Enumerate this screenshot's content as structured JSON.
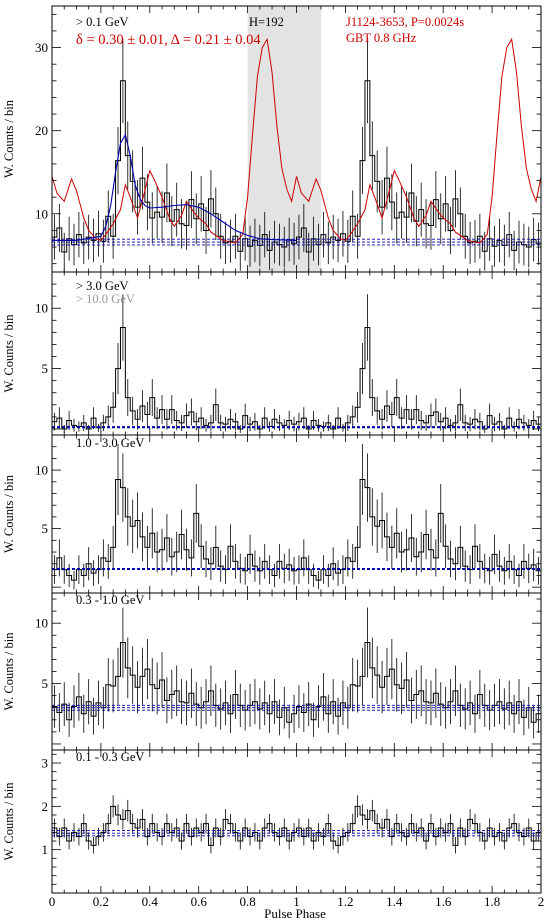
{
  "figure": {
    "xlabel": "Pulse Phase",
    "ylabel": "W. Counts / bin",
    "xticks": [
      "0",
      "0.2",
      "0.4",
      "0.6",
      "0.8",
      "1",
      "1.2",
      "1.4",
      "1.6",
      "1.8",
      "2"
    ],
    "colors": {
      "hist": "#000000",
      "radio": "#cc0000",
      "fit": "#0000aa",
      "band": "#e3e3e3",
      "grey_text": "#9a9a9a"
    }
  },
  "chart_data": [
    {
      "type": "histogram",
      "energy_label": "> 0.1 GeV",
      "params_label": "δ = 0.30 ± 0.01, Δ = 0.21 ± 0.04",
      "h_label": "H=192",
      "pulsar_label": "J1124-3653, P=0.0024s",
      "radio_label": "GBT 0.8 GHz",
      "offpulse_region": [
        0.8,
        1.1
      ],
      "ylim": [
        3,
        35
      ],
      "yticks": [
        10,
        20,
        30
      ],
      "background_level": 6.6,
      "bins_per_cycle": 50,
      "counts": [
        7.2,
        8.3,
        5.4,
        7.0,
        6.3,
        7.5,
        6.5,
        7.2,
        6.8,
        7.6,
        6.7,
        9.7,
        7.3,
        16.4,
        26.0,
        17.0,
        13.9,
        10.8,
        14.3,
        11.4,
        9.5,
        10.2,
        9.6,
        12.5,
        9.1,
        10.5,
        8.8,
        8.6,
        11.7,
        9.4,
        11.2,
        8.0,
        11.8,
        10.0,
        7.3,
        6.5,
        6.7,
        7.3,
        5.5,
        7.0,
        6.1,
        6.8,
        6.2,
        7.5,
        5.6,
        6.6,
        6.3,
        6.0,
        6.9,
        6.4
      ],
      "radio_profile": {
        "x": [
          0,
          0.02,
          0.05,
          0.08,
          0.1,
          0.13,
          0.15,
          0.18,
          0.2,
          0.22,
          0.25,
          0.28,
          0.3,
          0.32,
          0.35,
          0.38,
          0.4,
          0.42,
          0.45,
          0.48,
          0.5,
          0.53,
          0.55,
          0.58,
          0.6,
          0.63,
          0.65,
          0.68,
          0.7,
          0.73,
          0.75,
          0.78,
          0.8,
          0.82,
          0.84,
          0.86,
          0.88,
          0.9,
          0.92,
          0.94,
          0.96,
          0.98,
          1.0
        ],
        "y": [
          14.5,
          12.5,
          11.5,
          14.2,
          12.8,
          9.5,
          8.0,
          7.0,
          6.8,
          7.5,
          8.8,
          10.5,
          13.5,
          12.0,
          9.5,
          12.8,
          15.2,
          14.0,
          12.0,
          9.5,
          8.5,
          9.8,
          11.5,
          10.2,
          9.5,
          8.8,
          7.8,
          7.2,
          6.8,
          6.6,
          6.5,
          7.5,
          12.0,
          19.5,
          26.5,
          30.0,
          31.0,
          27.0,
          20.5,
          15.5,
          13.0,
          11.5,
          14.5
        ]
      },
      "fit_profile": {
        "x": [
          0,
          0.1,
          0.2,
          0.22,
          0.24,
          0.26,
          0.28,
          0.3,
          0.32,
          0.34,
          0.36,
          0.38,
          0.4,
          0.45,
          0.5,
          0.55,
          0.6,
          0.65,
          0.7,
          0.75,
          0.8,
          0.85,
          0.9,
          1.0
        ],
        "y": [
          6.8,
          6.8,
          7.3,
          8.5,
          11.0,
          15.0,
          18.5,
          19.5,
          17.0,
          13.5,
          11.8,
          11.0,
          10.7,
          10.8,
          11.0,
          11.1,
          10.8,
          10.0,
          9.0,
          8.0,
          7.4,
          7.0,
          6.9,
          6.8
        ]
      }
    },
    {
      "type": "histogram",
      "energy_label": "> 3.0 GeV",
      "energy_label_2": "> 10.0 GeV",
      "ylim": [
        -0.5,
        13
      ],
      "yticks": [
        5,
        10
      ],
      "background_level": 0.15,
      "bins_per_cycle": 50,
      "counts": [
        0.6,
        0.9,
        0.0,
        0.7,
        0.3,
        0.2,
        0.5,
        0.0,
        0.9,
        0.1,
        0.5,
        1.0,
        1.8,
        5.0,
        8.4,
        2.6,
        1.5,
        0.8,
        1.9,
        1.2,
        2.6,
        0.9,
        1.6,
        0.8,
        1.6,
        0.7,
        0.5,
        1.1,
        1.4,
        0.6,
        0.9,
        0.3,
        0.5,
        2.0,
        0.5,
        0.4,
        0.8,
        0.6,
        0.0,
        1.1,
        0.4,
        0.6,
        0.0,
        0.9,
        0.2,
        0.8,
        0.5,
        0.3,
        0.7,
        0.4
      ]
    },
    {
      "type": "histogram",
      "energy_label": "1.0 - 3.0 GeV",
      "ylim": [
        -0.5,
        13
      ],
      "yticks": [
        5,
        10
      ],
      "background_level": 1.55,
      "bins_per_cycle": 50,
      "counts": [
        1.5,
        2.5,
        1.5,
        1.0,
        0.6,
        1.5,
        1.0,
        2.0,
        1.2,
        1.5,
        2.5,
        2.2,
        3.4,
        9.2,
        8.5,
        6.0,
        5.2,
        5.7,
        4.3,
        3.4,
        4.6,
        3.0,
        3.2,
        4.2,
        2.6,
        3.0,
        4.5,
        3.2,
        2.5,
        6.3,
        3.5,
        2.4,
        2.0,
        3.4,
        1.8,
        1.5,
        3.5,
        2.2,
        1.6,
        1.4,
        2.8,
        1.8,
        1.4,
        2.2,
        1.5,
        1.0,
        2.2,
        1.6,
        1.9,
        1.4
      ]
    },
    {
      "type": "histogram",
      "energy_label": "0.3 - 1.0 GeV",
      "ylim": [
        -0.5,
        12.5
      ],
      "yticks": [
        5,
        10
      ],
      "background_level": 3.0,
      "bins_per_cycle": 50,
      "counts": [
        3.1,
        2.6,
        3.3,
        2.0,
        3.1,
        3.9,
        2.5,
        3.5,
        2.3,
        3.4,
        3.0,
        4.9,
        4.8,
        5.6,
        8.4,
        6.3,
        5.7,
        4.7,
        5.6,
        6.2,
        4.9,
        4.6,
        5.3,
        3.6,
        4.1,
        4.4,
        3.5,
        3.4,
        4.2,
        3.3,
        3.0,
        3.5,
        4.4,
        3.2,
        2.9,
        3.4,
        2.5,
        4.1,
        3.2,
        2.8,
        3.2,
        3.5,
        2.9,
        3.4,
        2.5,
        3.5,
        2.2,
        3.0,
        1.8,
        2.5
      ]
    },
    {
      "type": "histogram",
      "energy_label": "0.1 - 0.3 GeV",
      "ylim": [
        0,
        3.3
      ],
      "yticks": [
        1,
        2,
        3
      ],
      "background_level": 1.38,
      "bins_per_cycle": 50,
      "counts": [
        1.5,
        1.3,
        1.5,
        1.2,
        1.4,
        1.3,
        1.6,
        1.2,
        1.1,
        1.3,
        1.4,
        1.6,
        2.0,
        1.8,
        1.7,
        1.9,
        1.6,
        1.5,
        1.7,
        1.3,
        1.6,
        1.4,
        1.3,
        1.6,
        1.4,
        1.5,
        1.2,
        1.6,
        1.3,
        1.5,
        1.4,
        1.6,
        1.1,
        1.5,
        1.3,
        1.7,
        1.6,
        1.4,
        1.2,
        1.5,
        1.3,
        1.4,
        1.2,
        1.5,
        1.6,
        1.4,
        1.3,
        1.5,
        1.2,
        1.4
      ]
    }
  ]
}
